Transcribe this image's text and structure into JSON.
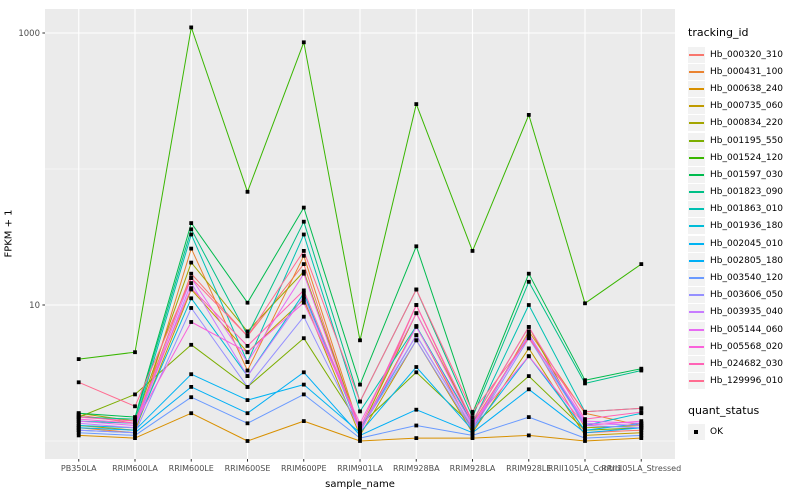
{
  "figure": {
    "background": "#FFFFFF",
    "panel_background": "#EBEBEB",
    "grid_color": "#FFFFFF",
    "axis_text_color": "#4D4D4D",
    "axis_title_color": "#000000",
    "point_color": "#000000"
  },
  "chart_data": {
    "type": "line",
    "title": "",
    "xlabel": "sample_name",
    "ylabel": "FPKM + 1",
    "y_scale": "log10",
    "grid": true,
    "legend_position": "right",
    "y_ticks": [
      {
        "value": 10,
        "label": "10"
      },
      {
        "value": 1000,
        "label": "1000"
      }
    ],
    "y_minor_ticks": [
      1,
      100
    ],
    "x_categories": [
      "PB350LA",
      "RRIM600LA",
      "RRIM600LE",
      "RRIM600SE",
      "RRIM600PE",
      "RRIM901LA",
      "RRIM928BA",
      "RRIM928LA",
      "RRIM928LE",
      "RRII105LA_Control",
      "RRII105LA_Stressed"
    ],
    "legend_title": "tracking_id",
    "legend2": {
      "title": "quant_status",
      "items": [
        "OK"
      ]
    },
    "series": [
      {
        "name": "Hb_000320_310",
        "color": "#F8766D",
        "values": [
          1.55,
          1.35,
          17,
          5.9,
          20,
          1.15,
          10,
          1.35,
          5.9,
          1.15,
          1.2
        ]
      },
      {
        "name": "Hb_000431_100",
        "color": "#EA8331",
        "values": [
          1.25,
          1.15,
          26,
          3.3,
          23,
          1.2,
          7,
          1.2,
          6.4,
          1.6,
          1.3
        ]
      },
      {
        "name": "Hb_000638_240",
        "color": "#D89000",
        "values": [
          1.1,
          1.05,
          1.6,
          1.0,
          1.4,
          1.0,
          1.05,
          1.05,
          1.1,
          1.0,
          1.05
        ]
      },
      {
        "name": "Hb_000735_060",
        "color": "#C09B00",
        "values": [
          1.3,
          1.2,
          13,
          4.5,
          11,
          1.1,
          5.5,
          1.15,
          4.8,
          1.1,
          1.15
        ]
      },
      {
        "name": "Hb_000834_220",
        "color": "#A3A500",
        "values": [
          1.6,
          1.4,
          20.5,
          6.4,
          17.6,
          1.2,
          8.7,
          1.4,
          6.9,
          1.25,
          1.3
        ]
      },
      {
        "name": "Hb_001195_550",
        "color": "#7CAE00",
        "values": [
          1.5,
          2.2,
          5.1,
          2.5,
          5.7,
          1.3,
          3.2,
          1.3,
          3.0,
          1.2,
          1.25
        ]
      },
      {
        "name": "Hb_001524_120",
        "color": "#39B600",
        "values": [
          4.0,
          4.5,
          1100,
          68,
          855,
          5.5,
          300,
          25,
          250,
          10.3,
          20
        ]
      },
      {
        "name": "Hb_001597_030",
        "color": "#00BB4E",
        "values": [
          1.6,
          1.5,
          40,
          10.4,
          52,
          2.6,
          27,
          1.6,
          17,
          2.8,
          3.4
        ]
      },
      {
        "name": "Hb_001823_090",
        "color": "#00C087",
        "values": [
          1.5,
          1.45,
          36,
          6.0,
          41,
          1.95,
          13,
          1.5,
          14.8,
          2.65,
          3.3
        ]
      },
      {
        "name": "Hb_001863_010",
        "color": "#00C0B2",
        "values": [
          1.4,
          1.35,
          33,
          3.8,
          33,
          1.65,
          7,
          1.35,
          10,
          1.64,
          1.74
        ]
      },
      {
        "name": "Hb_001936_180",
        "color": "#00BCD8",
        "values": [
          1.3,
          1.25,
          11.2,
          3.0,
          12.2,
          1.2,
          6.0,
          1.25,
          6.1,
          1.3,
          1.6
        ]
      },
      {
        "name": "Hb_002045_010",
        "color": "#00B3F2",
        "values": [
          1.25,
          1.2,
          3.1,
          2.0,
          2.6,
          1.15,
          3.5,
          1.2,
          4.2,
          1.2,
          1.35
        ]
      },
      {
        "name": "Hb_002805_180",
        "color": "#00AFF6",
        "values": [
          1.2,
          1.15,
          2.5,
          1.6,
          3.2,
          1.1,
          1.7,
          1.15,
          2.4,
          1.15,
          1.25
        ]
      },
      {
        "name": "Hb_003540_120",
        "color": "#6A9AFF",
        "values": [
          1.15,
          1.1,
          2.1,
          1.35,
          2.2,
          1.05,
          1.3,
          1.1,
          1.5,
          1.05,
          1.1
        ]
      },
      {
        "name": "Hb_003606_050",
        "color": "#9590FF",
        "values": [
          1.2,
          1.15,
          9.5,
          2.5,
          8.2,
          1.2,
          5.5,
          1.2,
          5.7,
          1.3,
          1.25
        ]
      },
      {
        "name": "Hb_003935_040",
        "color": "#C77CFF",
        "values": [
          1.35,
          1.25,
          14.5,
          3.0,
          11.5,
          1.25,
          6.0,
          1.25,
          6.1,
          1.35,
          1.3
        ]
      },
      {
        "name": "Hb_005144_060",
        "color": "#E76BF3",
        "values": [
          1.4,
          1.3,
          15.8,
          3.8,
          17,
          1.15,
          6.9,
          1.3,
          5.9,
          1.4,
          1.35
        ]
      },
      {
        "name": "Hb_005568_020",
        "color": "#FA62DB",
        "values": [
          1.45,
          1.35,
          7.5,
          4.5,
          10.4,
          1.35,
          8.7,
          1.35,
          4.2,
          1.3,
          1.4
        ]
      },
      {
        "name": "Hb_024682_030",
        "color": "#FF63B6",
        "values": [
          1.5,
          1.4,
          13.3,
          5.0,
          12.8,
          1.25,
          10,
          1.4,
          6.9,
          1.45,
          1.63
        ]
      },
      {
        "name": "Hb_129996_010",
        "color": "#FF6C91",
        "values": [
          2.7,
          1.8,
          15.8,
          5.9,
          25,
          1.95,
          13,
          1.64,
          5.7,
          1.64,
          1.74
        ]
      }
    ]
  }
}
